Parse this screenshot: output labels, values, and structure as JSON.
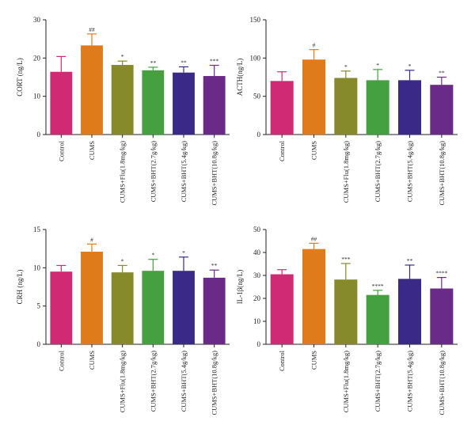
{
  "chart_data": [
    {
      "type": "bar",
      "ylabel": "CORT (ng/L)",
      "ylim": [
        0,
        30
      ],
      "yticks": [
        0,
        10,
        20,
        30
      ],
      "categories": [
        "Control",
        "CUMS",
        "CUMS+Flu(1.8mg/kg)",
        "CUMS+BHT(2.7g/kg)",
        "CUMS+BHT(5.4g/kg)",
        "CUMS+BHT(10.8g/kg)"
      ],
      "values": [
        16.4,
        23.3,
        18.2,
        16.8,
        16.2,
        15.3
      ],
      "errors": [
        4.0,
        3.0,
        1.0,
        0.8,
        1.5,
        2.8
      ],
      "annotations": [
        "",
        "##",
        "*",
        "**",
        "**",
        "***"
      ],
      "colors": [
        "#d12a74",
        "#e07b1b",
        "#868a2a",
        "#45a040",
        "#3b2987",
        "#6a2b88"
      ]
    },
    {
      "type": "bar",
      "ylabel": "ACTH(ng/L)",
      "ylim": [
        0,
        150
      ],
      "yticks": [
        0,
        50,
        100,
        150
      ],
      "categories": [
        "Control",
        "CUMS",
        "CUMS+Flu(1.8mg/kg)",
        "CUMS+BHT(2.7g/kg)",
        "CUMS+BHT(5.4g/kg)",
        "CUMS+BHT(10.8g/kg)"
      ],
      "values": [
        70,
        98,
        74,
        71,
        71,
        65
      ],
      "errors": [
        12,
        13,
        9,
        14,
        13,
        10
      ],
      "annotations": [
        "",
        "#",
        "*",
        "*",
        "*",
        "**"
      ],
      "colors": [
        "#d12a74",
        "#e07b1b",
        "#868a2a",
        "#45a040",
        "#3b2987",
        "#6a2b88"
      ]
    },
    {
      "type": "bar",
      "ylabel": "CRH (ng/L)",
      "ylim": [
        0,
        15
      ],
      "yticks": [
        0,
        5,
        10,
        15
      ],
      "categories": [
        "Control",
        "CUMS",
        "CUMS+Flu(1.8mg/kg)",
        "CUMS+BHT(2.7g/kg)",
        "CUMS+BHT(5.4g/kg)",
        "CUMS+BHT(10.8g/kg)"
      ],
      "values": [
        9.5,
        12.1,
        9.4,
        9.6,
        9.6,
        8.7
      ],
      "errors": [
        0.8,
        1.0,
        0.9,
        1.5,
        1.8,
        1.0
      ],
      "annotations": [
        "",
        "#",
        "*",
        "*",
        "*",
        "**"
      ],
      "colors": [
        "#d12a74",
        "#e07b1b",
        "#868a2a",
        "#45a040",
        "#3b2987",
        "#6a2b88"
      ]
    },
    {
      "type": "bar",
      "ylabel": "IL-1β(ng/L)",
      "ylim": [
        0,
        50
      ],
      "yticks": [
        0,
        10,
        20,
        30,
        40,
        50
      ],
      "categories": [
        "Control",
        "CUMS",
        "CUMS+Flu(1.8mg/kg)",
        "CUMS+BHT(2.7g/kg)",
        "CUMS+BHT(5.4g/kg)",
        "CUMS+BHT(10.8g/kg)"
      ],
      "values": [
        30.5,
        41.5,
        28.2,
        21.5,
        28.5,
        24.3
      ],
      "errors": [
        2.0,
        2.5,
        7.0,
        2.0,
        6.0,
        4.8
      ],
      "annotations": [
        "",
        "##",
        "***",
        "****",
        "**",
        "****"
      ],
      "colors": [
        "#d12a74",
        "#e07b1b",
        "#868a2a",
        "#45a040",
        "#3b2987",
        "#6a2b88"
      ]
    }
  ]
}
